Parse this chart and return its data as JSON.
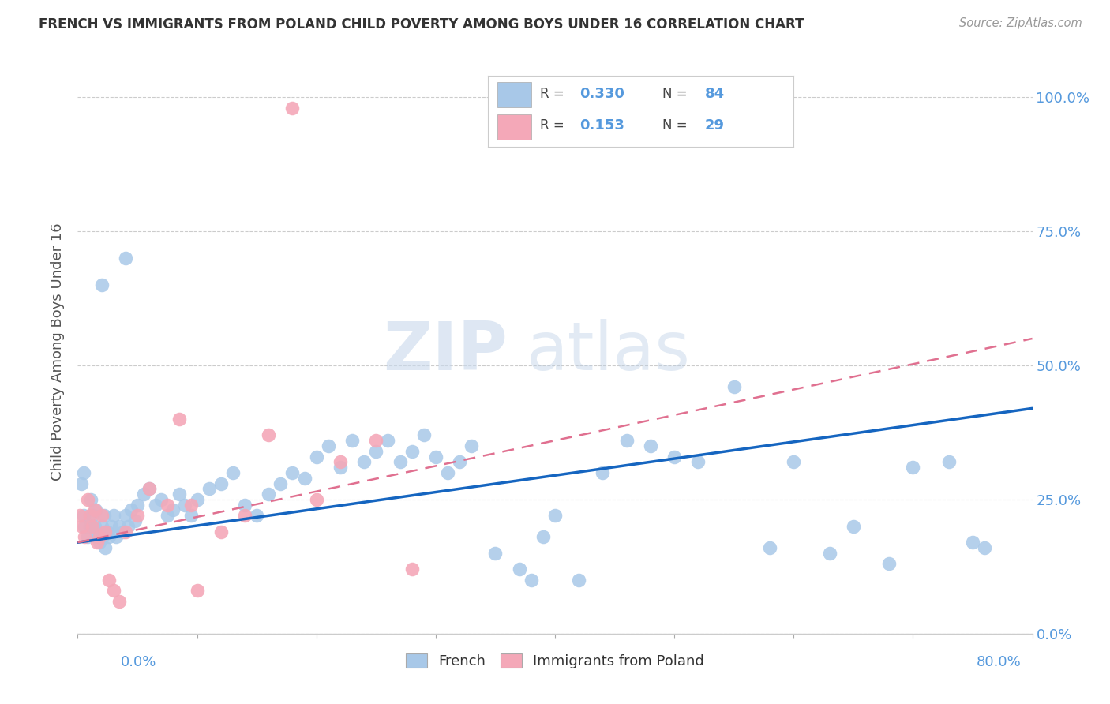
{
  "title": "FRENCH VS IMMIGRANTS FROM POLAND CHILD POVERTY AMONG BOYS UNDER 16 CORRELATION CHART",
  "source": "Source: ZipAtlas.com",
  "ylabel": "Child Poverty Among Boys Under 16",
  "ytick_labels": [
    "0.0%",
    "25.0%",
    "50.0%",
    "75.0%",
    "100.0%"
  ],
  "ytick_values": [
    0,
    25,
    50,
    75,
    100
  ],
  "xlim": [
    0,
    80
  ],
  "ylim": [
    0,
    105
  ],
  "french_color": "#a8c8e8",
  "poland_color": "#f4a8b8",
  "french_R": 0.33,
  "french_N": 84,
  "poland_R": 0.153,
  "poland_N": 29,
  "legend_label_french": "French",
  "legend_label_poland": "Immigrants from Poland",
  "french_trend_x": [
    0,
    80
  ],
  "french_trend_y": [
    17,
    42
  ],
  "poland_trend_x": [
    0,
    80
  ],
  "poland_trend_y": [
    17,
    55
  ],
  "french_x": [
    0.3,
    0.5,
    0.6,
    0.8,
    1.0,
    1.1,
    1.2,
    1.4,
    1.5,
    1.6,
    1.8,
    2.0,
    2.1,
    2.2,
    2.3,
    2.5,
    2.6,
    2.8,
    3.0,
    3.2,
    3.5,
    3.8,
    4.0,
    4.2,
    4.5,
    4.8,
    5.0,
    5.5,
    6.0,
    6.5,
    7.0,
    7.5,
    8.0,
    8.5,
    9.0,
    9.5,
    10.0,
    11.0,
    12.0,
    13.0,
    14.0,
    15.0,
    16.0,
    17.0,
    18.0,
    19.0,
    20.0,
    21.0,
    22.0,
    23.0,
    24.0,
    25.0,
    26.0,
    27.0,
    28.0,
    29.0,
    30.0,
    31.0,
    32.0,
    33.0,
    35.0,
    37.0,
    38.0,
    39.0,
    40.0,
    42.0,
    44.0,
    46.0,
    48.0,
    50.0,
    52.0,
    55.0,
    58.0,
    60.0,
    63.0,
    65.0,
    68.0,
    70.0,
    73.0,
    76.0,
    0.5,
    2.0,
    4.0,
    75.0
  ],
  "french_y": [
    28,
    22,
    20,
    18,
    20,
    25,
    22,
    20,
    23,
    18,
    17,
    20,
    18,
    22,
    16,
    19,
    18,
    20,
    22,
    18,
    20,
    19,
    22,
    20,
    23,
    21,
    24,
    26,
    27,
    24,
    25,
    22,
    23,
    26,
    24,
    22,
    25,
    27,
    28,
    30,
    24,
    22,
    26,
    28,
    30,
    29,
    33,
    35,
    31,
    36,
    32,
    34,
    36,
    32,
    34,
    37,
    33,
    30,
    32,
    35,
    15,
    12,
    10,
    18,
    22,
    10,
    30,
    36,
    35,
    33,
    32,
    46,
    16,
    32,
    15,
    20,
    13,
    31,
    32,
    16,
    30,
    65,
    70,
    17
  ],
  "poland_x": [
    0.2,
    0.4,
    0.6,
    0.8,
    1.0,
    1.2,
    1.4,
    1.6,
    1.8,
    2.0,
    2.3,
    2.6,
    3.0,
    3.5,
    4.0,
    5.0,
    6.0,
    7.5,
    8.5,
    9.5,
    10.0,
    12.0,
    14.0,
    16.0,
    18.0,
    20.0,
    22.0,
    25.0,
    28.0
  ],
  "poland_y": [
    22,
    20,
    18,
    25,
    22,
    20,
    23,
    17,
    18,
    22,
    19,
    10,
    8,
    6,
    19,
    22,
    27,
    24,
    40,
    24,
    8,
    19,
    22,
    37,
    98,
    25,
    32,
    36,
    12
  ],
  "watermark_zip": "ZIP",
  "watermark_atlas": "atlas",
  "right_tick_color": "#5599dd",
  "title_color": "#333333"
}
